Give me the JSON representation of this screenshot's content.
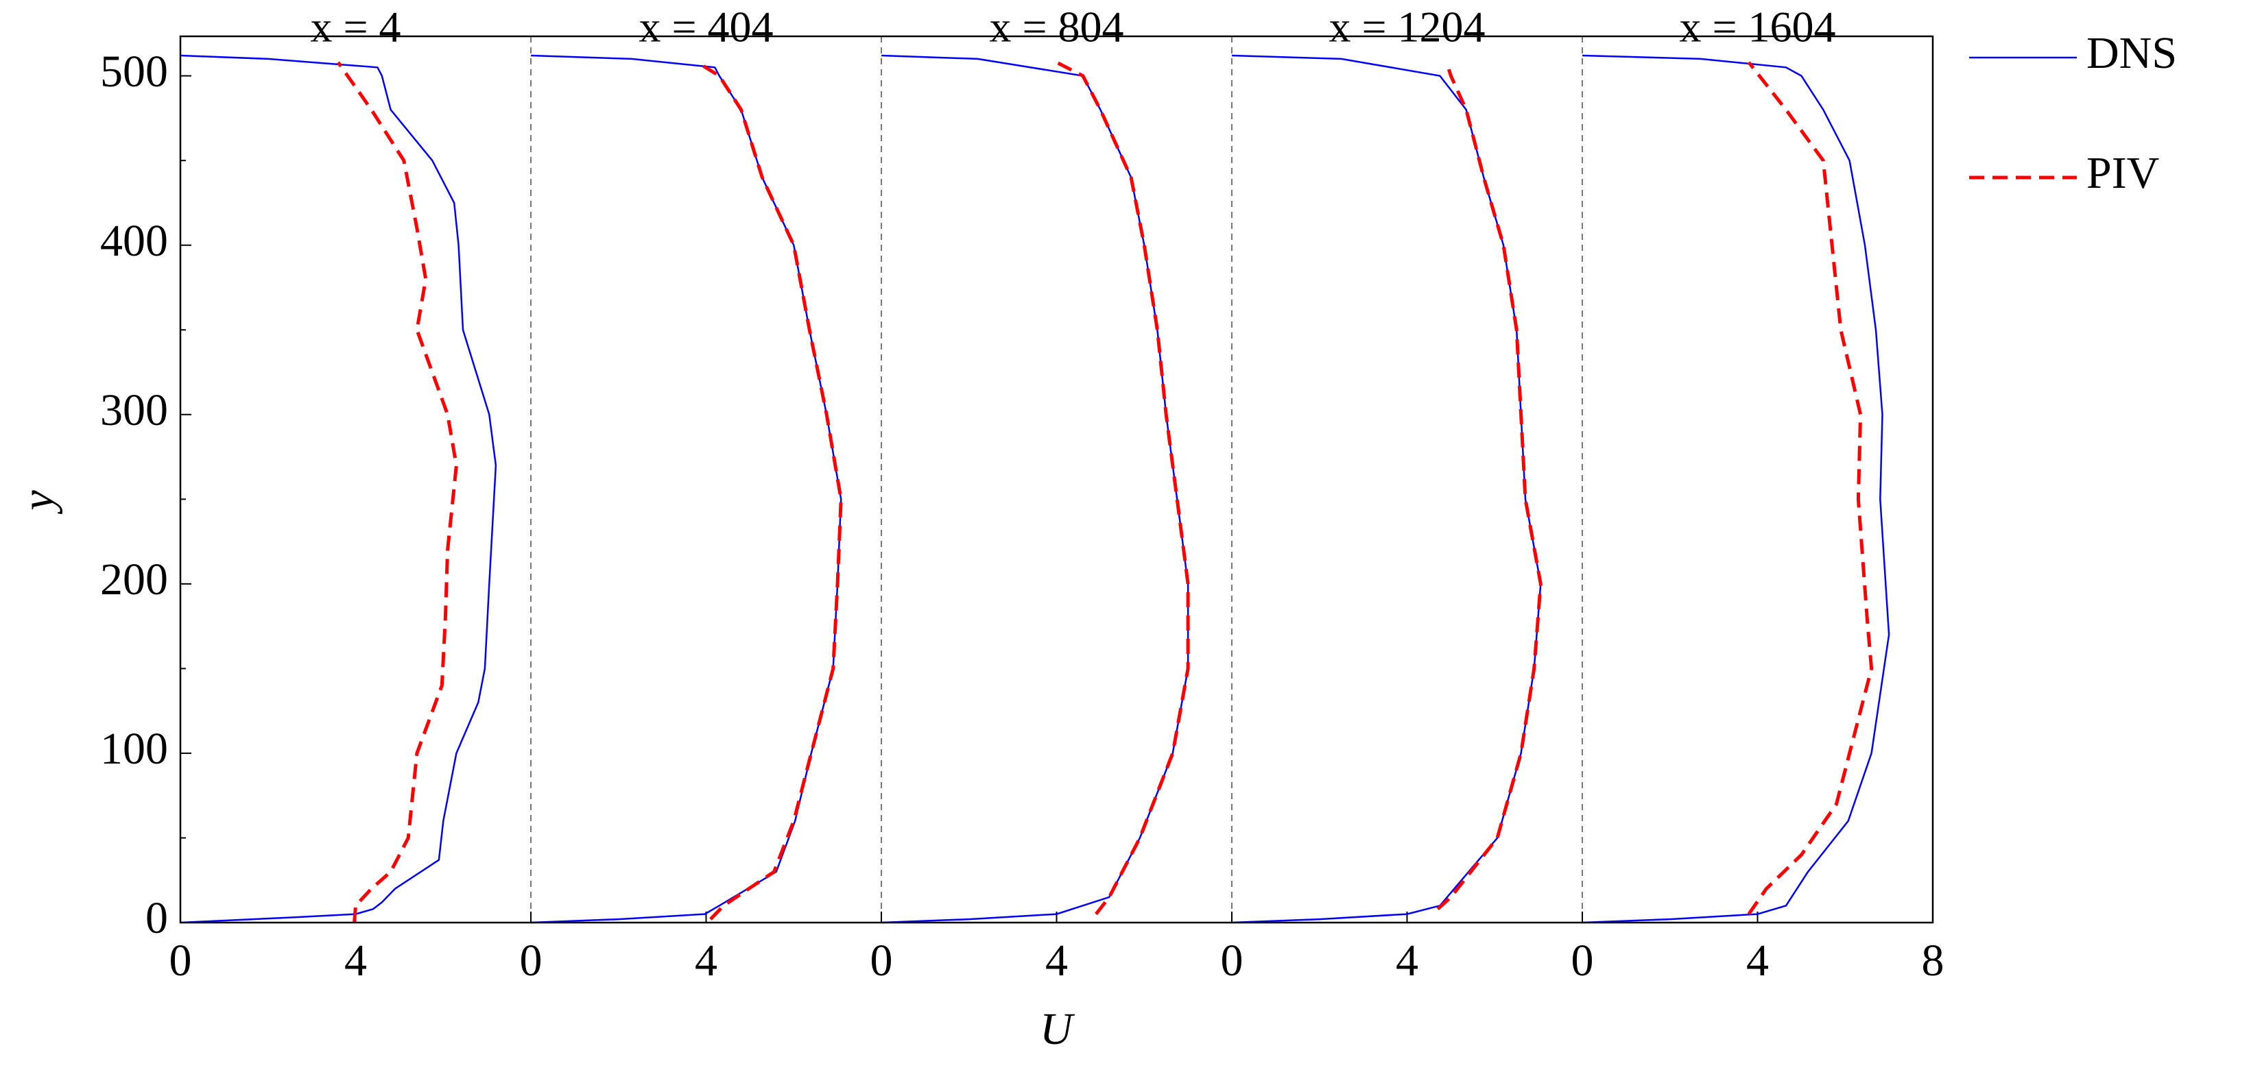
{
  "chart_data": {
    "type": "line",
    "xlabel": "U",
    "ylabel": "y",
    "ylim": [
      0,
      512
    ],
    "yticks": [
      0,
      100,
      200,
      300,
      400,
      500
    ],
    "yminorticks": [
      50,
      150,
      250,
      350,
      450
    ],
    "legend": "outside-right",
    "series": [
      {
        "name": "DNS",
        "color": "#0000ff",
        "dash": "solid"
      },
      {
        "name": "PIV",
        "color": "#ff0000",
        "dash": "dashed"
      }
    ],
    "panels": [
      {
        "title": "x = 4",
        "xlim": [
          0,
          8
        ],
        "xticks": [
          0,
          4
        ],
        "lines": [
          {
            "y": [
              0,
              3,
              5,
              8,
              12,
              20,
              37,
              60,
              100,
              130,
              150,
              200,
              270,
              300,
              350,
              400,
              425,
              450,
              480,
              500,
              505,
              510,
              512
            ],
            "values": [
              0,
              2.5,
              4.0,
              4.4,
              4.6,
              4.9,
              5.9,
              6.0,
              6.3,
              6.8,
              6.95,
              7.05,
              7.2,
              7.05,
              6.45,
              6.35,
              6.25,
              5.75,
              4.8,
              4.6,
              4.5,
              2.0,
              0
            ]
          },
          {
            "y": [
              0,
              10,
              20,
              30,
              50,
              100,
              140,
              180,
              220,
              270,
              300,
              350,
              380,
              410,
              450,
              480,
              508
            ],
            "values": [
              3.97,
              4.0,
              4.36,
              4.8,
              5.2,
              5.4,
              5.97,
              6.05,
              6.1,
              6.3,
              6.1,
              5.4,
              5.6,
              5.4,
              5.1,
              4.36,
              3.6
            ]
          }
        ]
      },
      {
        "title": "x = 404",
        "xlim": [
          0,
          8
        ],
        "xticks": [
          0,
          4
        ],
        "lines": [
          {
            "y": [
              0,
              2,
              5,
              10,
              30,
              60,
              100,
              150,
              200,
              250,
              300,
              350,
              400,
              440,
              480,
              500,
              505,
              510,
              512
            ],
            "values": [
              0,
              2,
              3.97,
              4.3,
              5.6,
              6.03,
              6.4,
              6.9,
              7.0,
              7.08,
              6.75,
              6.36,
              6.0,
              5.28,
              4.8,
              4.3,
              4.2,
              2.3,
              0
            ]
          },
          {
            "y": [
              2,
              10,
              30,
              60,
              100,
              150,
              200,
              250,
              300,
              350,
              400,
              440,
              480,
              500,
              508
            ],
            "values": [
              4.1,
              4.4,
              5.55,
              6.0,
              6.4,
              6.9,
              7.0,
              7.08,
              6.75,
              6.36,
              6.0,
              5.28,
              4.8,
              4.3,
              3.8
            ]
          }
        ]
      },
      {
        "title": "x = 804",
        "xlim": [
          0,
          8
        ],
        "xticks": [
          0,
          4
        ],
        "lines": [
          {
            "y": [
              0,
              2,
              5,
              15,
              50,
              100,
              150,
              200,
              250,
              300,
              350,
              400,
              440,
              480,
              500,
              510,
              512
            ],
            "values": [
              0,
              2,
              4.0,
              5.2,
              5.9,
              6.65,
              7.0,
              7.0,
              6.75,
              6.5,
              6.3,
              6.0,
              5.7,
              5.0,
              4.6,
              2.2,
              0
            ]
          },
          {
            "y": [
              5,
              15,
              50,
              100,
              150,
              200,
              250,
              300,
              350,
              400,
              440,
              480,
              500,
              508
            ],
            "values": [
              4.9,
              5.2,
              5.9,
              6.65,
              7.0,
              7.0,
              6.75,
              6.5,
              6.3,
              6.0,
              5.7,
              5.0,
              4.6,
              4.0
            ]
          }
        ]
      },
      {
        "title": "x = 1204",
        "xlim": [
          0,
          8
        ],
        "xticks": [
          0,
          4
        ],
        "lines": [
          {
            "y": [
              0,
              2,
              5,
              10,
              50,
              100,
              150,
              200,
              250,
              300,
              350,
              400,
              440,
              480,
              500,
              510,
              512
            ],
            "values": [
              0,
              2,
              4.0,
              4.75,
              6.06,
              6.6,
              6.9,
              7.05,
              6.7,
              6.6,
              6.5,
              6.2,
              5.75,
              5.35,
              4.75,
              2.5,
              0
            ]
          },
          {
            "y": [
              8,
              15,
              50,
              100,
              150,
              200,
              250,
              300,
              350,
              400,
              440,
              480,
              500,
              508
            ],
            "values": [
              4.7,
              5.0,
              6.06,
              6.6,
              6.9,
              7.05,
              6.7,
              6.6,
              6.5,
              6.2,
              5.75,
              5.35,
              5.0,
              4.9
            ]
          }
        ]
      },
      {
        "title": "x = 1604",
        "xlim": [
          0,
          8
        ],
        "xticks": [
          0,
          4,
          8
        ],
        "lines": [
          {
            "y": [
              0,
              2,
              5,
              10,
              30,
              60,
              100,
              170,
              250,
              300,
              350,
              400,
              450,
              480,
              500,
              505,
              510,
              512
            ],
            "values": [
              0,
              2,
              4.0,
              4.65,
              5.15,
              6.07,
              6.6,
              7.0,
              6.8,
              6.85,
              6.7,
              6.45,
              6.1,
              5.5,
              5.0,
              4.65,
              2.7,
              0
            ]
          },
          {
            "y": [
              5,
              20,
              40,
              70,
              100,
              150,
              180,
              250,
              300,
              350,
              400,
              450,
              480,
              508
            ],
            "values": [
              3.8,
              4.2,
              5.0,
              5.8,
              6.1,
              6.6,
              6.5,
              6.3,
              6.35,
              5.9,
              5.7,
              5.5,
              4.65,
              3.8
            ]
          }
        ]
      }
    ]
  }
}
